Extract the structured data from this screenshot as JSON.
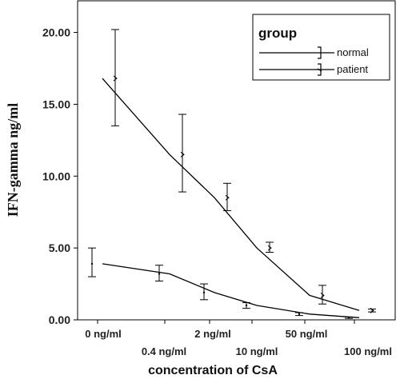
{
  "chart_data": {
    "type": "line",
    "xlabel": "concentration of CsA",
    "ylabel": "IFN-gamma ng/ml",
    "ylim": [
      0,
      22.2
    ],
    "yticks": [
      "0.00",
      "5.00",
      "10.00",
      "15.00",
      "20.00"
    ],
    "ytick_values": [
      0,
      5,
      10,
      15,
      20
    ],
    "categories": [
      "0 ng/ml",
      "0.4 ng/ml",
      "2 ng/ml",
      "10 ng/ml",
      "50 ng/ml",
      "100 ng/ml"
    ],
    "legend": {
      "title": "group",
      "placement": "top-right",
      "entries": [
        "normal",
        "patient"
      ]
    },
    "series": [
      {
        "name": "normal",
        "color": "#000000",
        "points": [
          {
            "x": "0 ng/ml",
            "mean": 3.9,
            "err_low": 3.0,
            "err_high": 5.0
          },
          {
            "x": "0.4 ng/ml",
            "mean": 3.2,
            "err_low": 2.7,
            "err_high": 3.8
          },
          {
            "x": "2 ng/ml",
            "mean": 1.9,
            "err_low": 1.4,
            "err_high": 2.5
          },
          {
            "x": "10 ng/ml",
            "mean": 1.0,
            "err_low": 0.8,
            "err_high": 1.2
          },
          {
            "x": "50 ng/ml",
            "mean": 0.4,
            "err_low": 0.3,
            "err_high": 0.5
          },
          {
            "x": "100 ng/ml",
            "mean": 0.15,
            "err_low": 0.1,
            "err_high": 0.2
          }
        ]
      },
      {
        "name": "patient",
        "color": "#000000",
        "points": [
          {
            "x": "0 ng/ml",
            "mean": 16.8,
            "err_low": 13.5,
            "err_high": 20.2
          },
          {
            "x": "0.4 ng/ml",
            "mean": 11.5,
            "err_low": 8.9,
            "err_high": 14.3
          },
          {
            "x": "2 ng/ml",
            "mean": 8.5,
            "err_low": 7.6,
            "err_high": 9.5
          },
          {
            "x": "10 ng/ml",
            "mean": 5.0,
            "err_low": 4.7,
            "err_high": 5.4
          },
          {
            "x": "50 ng/ml",
            "mean": 1.7,
            "err_low": 1.1,
            "err_high": 2.4
          },
          {
            "x": "100 ng/ml",
            "mean": 0.65,
            "err_low": 0.55,
            "err_high": 0.75
          }
        ]
      }
    ]
  }
}
